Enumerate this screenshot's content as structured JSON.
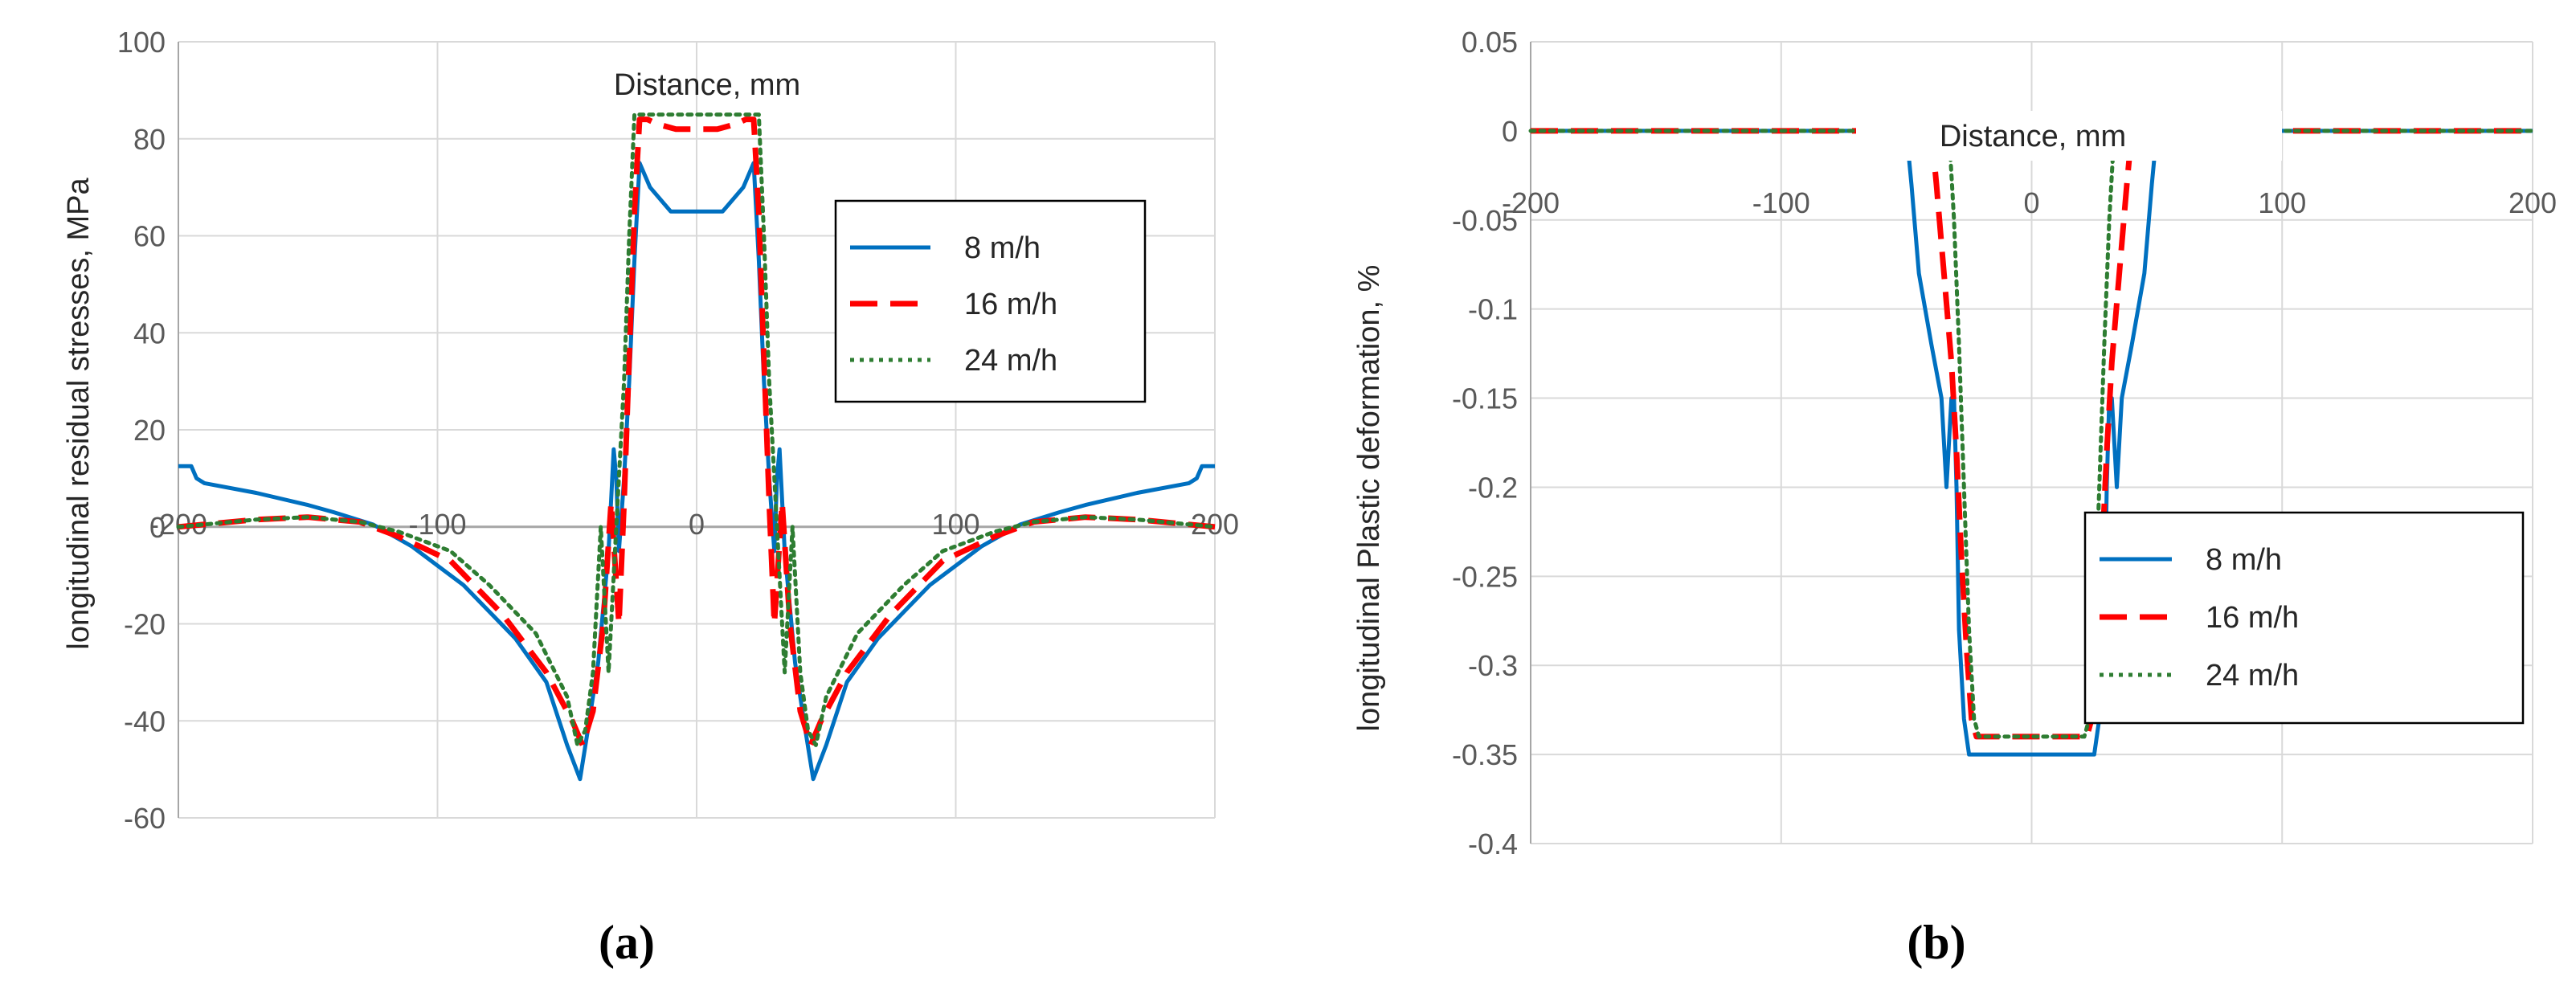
{
  "colors": {
    "blue": "#0070C0",
    "red": "#FF0000",
    "green": "#2E7D32",
    "grid": "#D9D9D9",
    "axis": "#A6A6A6"
  },
  "chart_data": [
    {
      "type": "line",
      "panel_label": "(a)",
      "title": "",
      "xlabel": "Distance, mm",
      "ylabel": "longitudinal residual stresses, MPa",
      "xlim": [
        -200,
        200
      ],
      "ylim": [
        -60,
        100
      ],
      "xticks": [
        -200,
        -100,
        0,
        100,
        200
      ],
      "yticks": [
        -60,
        -40,
        -20,
        0,
        20,
        40,
        60,
        80,
        100
      ],
      "grid": true,
      "legend_position": "right",
      "series": [
        {
          "name": "8 m/h",
          "color": "#0070C0",
          "dash": "solid",
          "x": [
            -200,
            -195,
            -193,
            -190,
            -170,
            -150,
            -140,
            -125,
            -110,
            -90,
            -70,
            -58,
            -50,
            -45,
            -42,
            -38,
            -34,
            -32,
            -31,
            -30,
            -28,
            -26,
            -24,
            -22,
            -18,
            -10,
            0,
            10,
            18,
            22,
            24,
            26,
            28,
            30,
            31,
            32,
            34,
            38,
            42,
            45,
            50,
            58,
            70,
            90,
            110,
            125,
            140,
            150,
            170,
            190,
            193,
            195,
            200
          ],
          "y": [
            12.5,
            12.5,
            10,
            9,
            7,
            4.5,
            3,
            0.5,
            -4,
            -12,
            -23,
            -32,
            -45,
            -52,
            -42,
            -28,
            -5,
            16,
            10,
            -5,
            10,
            30,
            55,
            75,
            70,
            65,
            65,
            65,
            70,
            75,
            55,
            30,
            10,
            -5,
            10,
            16,
            -5,
            -28,
            -42,
            -52,
            -45,
            -32,
            -23,
            -12,
            -4,
            0.5,
            3,
            4.5,
            7,
            9,
            10,
            12.5,
            12.5
          ]
        },
        {
          "name": "16 m/h",
          "color": "#FF0000",
          "dash": "dashed",
          "x": [
            -200,
            -170,
            -150,
            -130,
            -115,
            -95,
            -75,
            -58,
            -48,
            -44,
            -40,
            -36,
            -33,
            -30,
            -28,
            -26,
            -24,
            -22,
            -19,
            -15,
            -8,
            0,
            8,
            15,
            19,
            22,
            24,
            26,
            28,
            30,
            33,
            36,
            40,
            44,
            48,
            58,
            75,
            95,
            115,
            130,
            150,
            170,
            200
          ],
          "y": [
            0,
            1.5,
            2,
            1,
            -2,
            -7,
            -18,
            -30,
            -40,
            -45,
            -38,
            -20,
            5,
            -20,
            5,
            35,
            65,
            84,
            84,
            83,
            82,
            82,
            82,
            83,
            84,
            84,
            65,
            35,
            5,
            -20,
            5,
            -20,
            -38,
            -45,
            -40,
            -30,
            -18,
            -7,
            -2,
            1,
            2,
            1.5,
            0
          ]
        },
        {
          "name": "24 m/h",
          "color": "#2E7D32",
          "dash": "dotted",
          "x": [
            -200,
            -170,
            -150,
            -130,
            -115,
            -95,
            -80,
            -62,
            -50,
            -46,
            -43,
            -40,
            -37,
            -34,
            -31,
            -28,
            -26,
            -24,
            -20,
            -16,
            -10,
            0,
            10,
            16,
            20,
            24,
            26,
            28,
            31,
            34,
            37,
            40,
            43,
            46,
            50,
            62,
            80,
            95,
            115,
            130,
            150,
            170,
            200
          ],
          "y": [
            0,
            1.5,
            2,
            1,
            -1,
            -5,
            -12,
            -22,
            -35,
            -45,
            -42,
            -30,
            0,
            -30,
            0,
            30,
            60,
            85,
            85,
            85,
            85,
            85,
            85,
            85,
            85,
            85,
            60,
            30,
            0,
            -30,
            0,
            -30,
            -42,
            -45,
            -35,
            -22,
            -12,
            -5,
            -1,
            1,
            2,
            1.5,
            0
          ]
        }
      ]
    },
    {
      "type": "line",
      "panel_label": "(b)",
      "title": "",
      "xlabel": "Distance, mm",
      "ylabel": "longitudinal  Plastic deformation, %",
      "xlim": [
        -200,
        200
      ],
      "ylim": [
        -0.4,
        0.05
      ],
      "xticks": [
        -200,
        -100,
        0,
        100,
        200
      ],
      "yticks": [
        -0.4,
        -0.35,
        -0.3,
        -0.25,
        -0.2,
        -0.15,
        -0.1,
        -0.05,
        0,
        0.05
      ],
      "grid": true,
      "legend_position": "bottom-right",
      "series": [
        {
          "name": "8 m/h",
          "color": "#0070C0",
          "dash": "solid",
          "x": [
            -200,
            -50,
            -48,
            -45,
            -40,
            -36,
            -34,
            -32,
            -31,
            -30,
            -29,
            -27,
            -25,
            -24,
            -22,
            -18,
            18,
            22,
            24,
            25,
            27,
            29,
            30,
            31,
            32,
            34,
            36,
            40,
            45,
            48,
            50,
            200
          ],
          "y": [
            0,
            0,
            -0.03,
            -0.08,
            -0.12,
            -0.15,
            -0.2,
            -0.15,
            -0.15,
            -0.2,
            -0.28,
            -0.33,
            -0.35,
            -0.35,
            -0.35,
            -0.35,
            -0.35,
            -0.35,
            -0.35,
            -0.35,
            -0.33,
            -0.28,
            -0.2,
            -0.15,
            -0.15,
            -0.2,
            -0.15,
            -0.12,
            -0.08,
            -0.03,
            0,
            0
          ]
        },
        {
          "name": "16 m/h",
          "color": "#FF0000",
          "dash": "dashed",
          "x": [
            -200,
            -40,
            -38,
            -35,
            -32,
            -30,
            -28,
            -26,
            -24,
            -22,
            -20,
            -18,
            18,
            20,
            22,
            24,
            26,
            28,
            30,
            32,
            35,
            38,
            40,
            200
          ],
          "y": [
            0,
            0,
            -0.03,
            -0.08,
            -0.13,
            -0.18,
            -0.24,
            -0.29,
            -0.33,
            -0.34,
            -0.34,
            -0.34,
            -0.34,
            -0.34,
            -0.34,
            -0.33,
            -0.29,
            -0.24,
            -0.18,
            -0.13,
            -0.08,
            -0.03,
            0,
            0
          ]
        },
        {
          "name": "24 m/h",
          "color": "#2E7D32",
          "dash": "dotted",
          "x": [
            -200,
            -33,
            -31,
            -29,
            -27,
            -25,
            -23,
            -21,
            -19,
            19,
            21,
            23,
            25,
            27,
            29,
            31,
            33,
            200
          ],
          "y": [
            0,
            0,
            -0.05,
            -0.12,
            -0.2,
            -0.28,
            -0.33,
            -0.34,
            -0.34,
            -0.34,
            -0.34,
            -0.33,
            -0.28,
            -0.2,
            -0.12,
            -0.05,
            0,
            0
          ]
        }
      ]
    }
  ]
}
